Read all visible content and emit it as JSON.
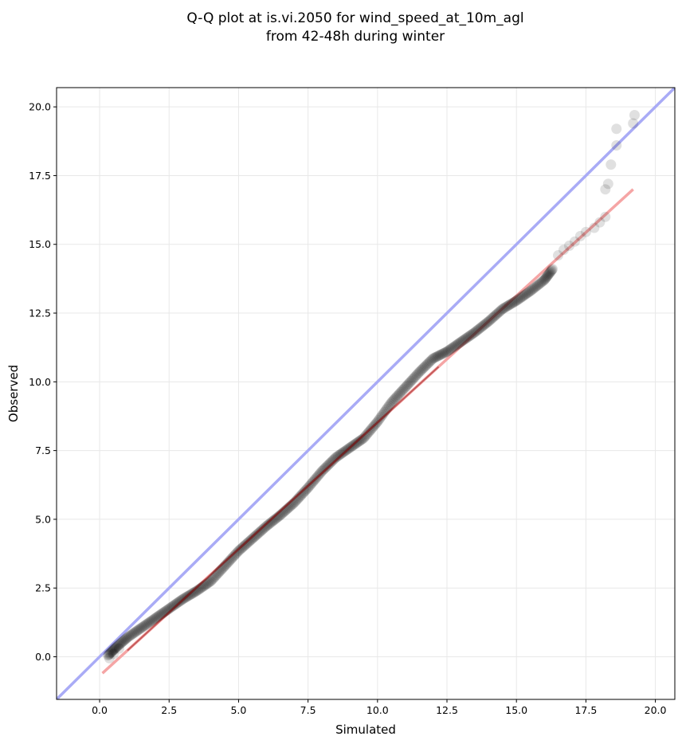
{
  "chart_data": {
    "type": "scatter",
    "title_lines": [
      "Q-Q plot at is.vi.2050 for wind_speed_at_10m_agl",
      "from 42-48h during winter"
    ],
    "xlabel": "Simulated",
    "ylabel": "Observed",
    "xlim": [
      -1.55,
      20.7
    ],
    "ylim": [
      -1.55,
      20.7
    ],
    "xticks": [
      0.0,
      2.5,
      5.0,
      7.5,
      10.0,
      12.5,
      15.0,
      17.5,
      20.0
    ],
    "yticks": [
      0.0,
      2.5,
      5.0,
      7.5,
      10.0,
      12.5,
      15.0,
      17.5,
      20.0
    ],
    "xtick_labels": [
      "0.0",
      "2.5",
      "5.0",
      "7.5",
      "10.0",
      "12.5",
      "15.0",
      "17.5",
      "20.0"
    ],
    "ytick_labels": [
      "0.0",
      "2.5",
      "5.0",
      "7.5",
      "10.0",
      "12.5",
      "15.0",
      "17.5",
      "20.0"
    ],
    "grid": true,
    "point_color": "#000000",
    "reference_line": {
      "slope": 1,
      "intercept": 0,
      "color": "#a9abf6"
    },
    "fit_line": {
      "x": [
        0.1,
        19.2
      ],
      "y": [
        -0.6,
        17.0
      ],
      "color": "#f5a5a5"
    },
    "highlight_color": "#8b0000",
    "qq_curve": {
      "x": [
        0.3,
        0.6,
        1.0,
        1.5,
        2.0,
        2.5,
        3.0,
        3.5,
        4.0,
        4.5,
        5.0,
        5.5,
        6.0,
        6.5,
        7.0,
        7.5,
        8.0,
        8.5,
        9.0,
        9.5,
        10.0,
        10.5,
        11.0,
        11.5,
        12.0,
        12.5,
        13.0,
        13.5,
        14.0,
        14.5,
        15.0,
        15.5,
        16.0,
        16.3
      ],
      "y": [
        0.05,
        0.35,
        0.7,
        1.05,
        1.4,
        1.75,
        2.1,
        2.4,
        2.75,
        3.3,
        3.85,
        4.3,
        4.75,
        5.15,
        5.6,
        6.15,
        6.75,
        7.25,
        7.6,
        7.95,
        8.55,
        9.25,
        9.8,
        10.35,
        10.85,
        11.1,
        11.45,
        11.8,
        12.2,
        12.65,
        12.95,
        13.3,
        13.7,
        14.1
      ]
    },
    "sparse_points": [
      {
        "x": 0.35,
        "y": -0.05
      },
      {
        "x": 0.5,
        "y": 0.1
      },
      {
        "x": 0.7,
        "y": 0.3
      },
      {
        "x": 16.5,
        "y": 14.6
      },
      {
        "x": 16.7,
        "y": 14.8
      },
      {
        "x": 16.9,
        "y": 14.95
      },
      {
        "x": 17.1,
        "y": 15.1
      },
      {
        "x": 17.3,
        "y": 15.3
      },
      {
        "x": 17.5,
        "y": 15.45
      },
      {
        "x": 17.8,
        "y": 15.6
      },
      {
        "x": 18.0,
        "y": 15.8
      },
      {
        "x": 18.2,
        "y": 16.0
      },
      {
        "x": 18.2,
        "y": 17.0
      },
      {
        "x": 18.3,
        "y": 17.2
      },
      {
        "x": 18.4,
        "y": 17.9
      },
      {
        "x": 18.6,
        "y": 18.6
      },
      {
        "x": 18.6,
        "y": 19.2
      },
      {
        "x": 19.2,
        "y": 19.4
      },
      {
        "x": 19.25,
        "y": 19.7
      }
    ]
  }
}
